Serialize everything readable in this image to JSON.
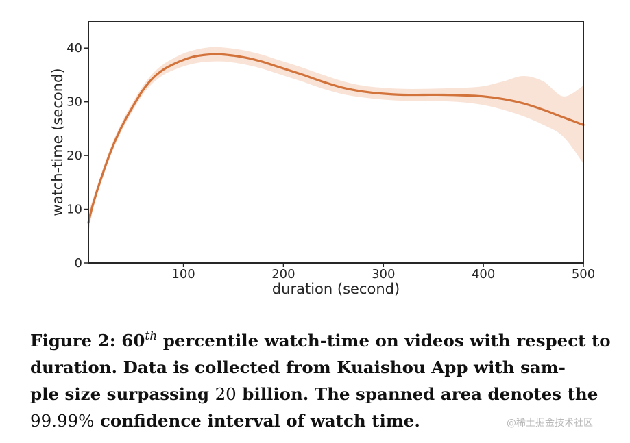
{
  "chart_data": {
    "type": "line",
    "title": "",
    "xlabel": "duration (second)",
    "ylabel": "watch-time (second)",
    "xlim": [
      5,
      500
    ],
    "ylim": [
      0,
      45
    ],
    "xticks": [
      100,
      200,
      300,
      400,
      500
    ],
    "yticks": [
      0,
      10,
      20,
      30,
      40
    ],
    "grid": false,
    "line_color": "#d2733b",
    "band_color": "#f9e3d7",
    "series": [
      {
        "x": [
          5,
          10,
          20,
          30,
          40,
          50,
          60,
          70,
          80,
          90,
          100,
          110,
          120,
          130,
          140,
          150,
          160,
          170,
          180,
          190,
          200,
          220,
          240,
          260,
          280,
          300,
          320,
          340,
          360,
          380,
          400,
          420,
          440,
          460,
          480,
          500
        ],
        "y": [
          7.5,
          11.2,
          17.0,
          22.0,
          26.0,
          29.3,
          32.3,
          34.5,
          36.0,
          37.0,
          37.8,
          38.4,
          38.7,
          38.85,
          38.8,
          38.6,
          38.3,
          37.9,
          37.4,
          36.8,
          36.2,
          35.0,
          33.7,
          32.6,
          31.9,
          31.5,
          31.3,
          31.3,
          31.3,
          31.2,
          31.0,
          30.5,
          29.7,
          28.5,
          27.1,
          25.7
        ],
        "lower": [
          5.5,
          10.2,
          16.2,
          21.2,
          25.2,
          28.5,
          31.5,
          33.6,
          35.0,
          35.9,
          36.6,
          37.1,
          37.4,
          37.5,
          37.5,
          37.3,
          37.0,
          36.6,
          36.1,
          35.5,
          34.9,
          33.7,
          32.4,
          31.4,
          30.8,
          30.4,
          30.2,
          30.2,
          30.1,
          29.9,
          29.4,
          28.5,
          27.3,
          25.7,
          23.5,
          18.5
        ],
        "upper": [
          9.5,
          12.2,
          17.8,
          22.8,
          26.8,
          30.1,
          33.1,
          35.4,
          37.0,
          38.1,
          39.0,
          39.6,
          40.0,
          40.2,
          40.1,
          39.9,
          39.6,
          39.2,
          38.7,
          38.1,
          37.5,
          36.3,
          35.0,
          33.8,
          33.0,
          32.6,
          32.4,
          32.4,
          32.5,
          32.6,
          32.9,
          33.8,
          34.8,
          33.8,
          31.0,
          33.0
        ]
      }
    ]
  },
  "caption": {
    "lead_bold": "Figure 2: ",
    "num_60": "60",
    "sup": "th",
    "line1_rest": " percentile watch-time on videos with respect to duration. Data is collected from Kuaishou App with sam-",
    "line2_bold": "ple size surpassing ",
    "num_20": "20",
    "line2_rest": " billion. The spanned area denotes the",
    "num_pct": "99.99%",
    "line3_rest": " confidence interval of watch time."
  },
  "watermark": "@稀土掘金技术社区"
}
